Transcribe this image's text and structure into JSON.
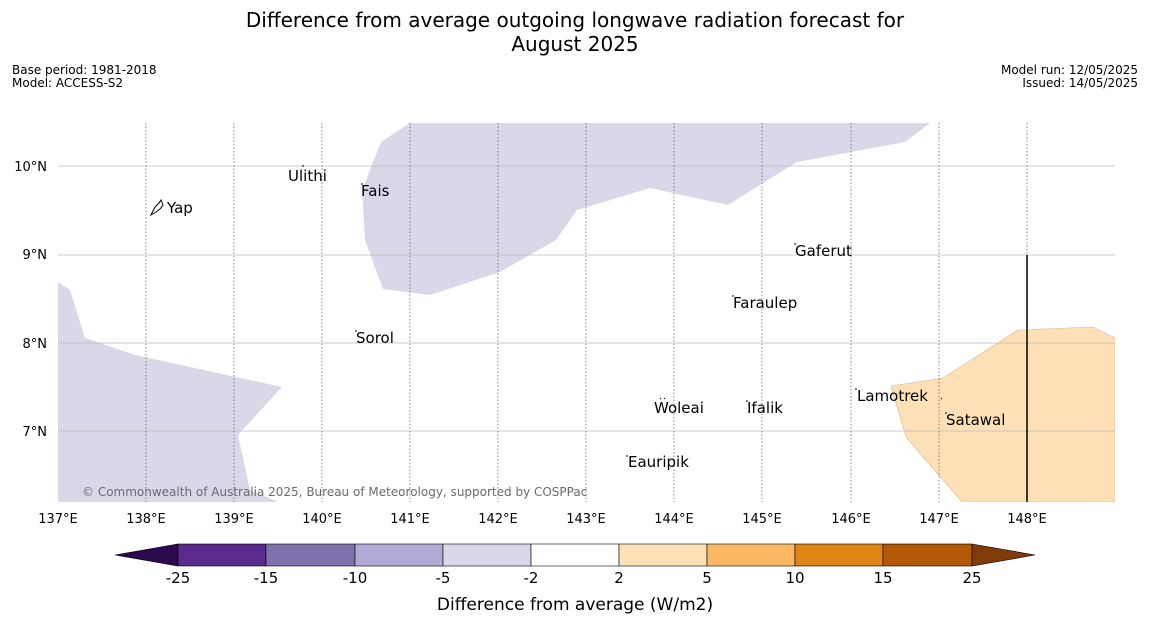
{
  "title_line1": "Difference from average outgoing longwave radiation forecast for",
  "title_line2": "August 2025",
  "meta_left": {
    "base_period": "Base period: 1981-2018",
    "model": "Model: ACCESS-S2"
  },
  "meta_right": {
    "model_run": "Model run: 12/05/2025",
    "issued": "Issued: 14/05/2025"
  },
  "map": {
    "lon_ticks": [
      "137°E",
      "138°E",
      "139°E",
      "140°E",
      "141°E",
      "142°E",
      "143°E",
      "144°E",
      "145°E",
      "146°E",
      "147°E",
      "148°E"
    ],
    "lat_ticks": [
      "10°N",
      "9°N",
      "8°N",
      "7°N"
    ],
    "places": [
      "Yap",
      "Ulithi",
      "Fais",
      "Gaferut",
      "Faraulep",
      "Sorol",
      "Lamotrek",
      "Woleai",
      "Ifalik",
      "Satawal",
      "Eauripik"
    ],
    "copyright": "© Commonwealth of Australia 2025, Bureau of Meteorology, supported by COSPPac",
    "colors": {
      "negative_2_5": "#d8d8e9",
      "positive_2_5": "#fde0b6"
    }
  },
  "colorbar": {
    "labels": [
      "-25",
      "-15",
      "-10",
      "-5",
      "-2",
      "2",
      "5",
      "10",
      "15",
      "25"
    ],
    "colors": [
      "#2d0a4e",
      "#5a2a8c",
      "#8070ae",
      "#b2aad4",
      "#d8d8e9",
      "#ffffff",
      "#fde0b6",
      "#fbb862",
      "#e08515",
      "#b35806",
      "#7f3b08"
    ],
    "label": "Difference from average (W/m2)"
  }
}
